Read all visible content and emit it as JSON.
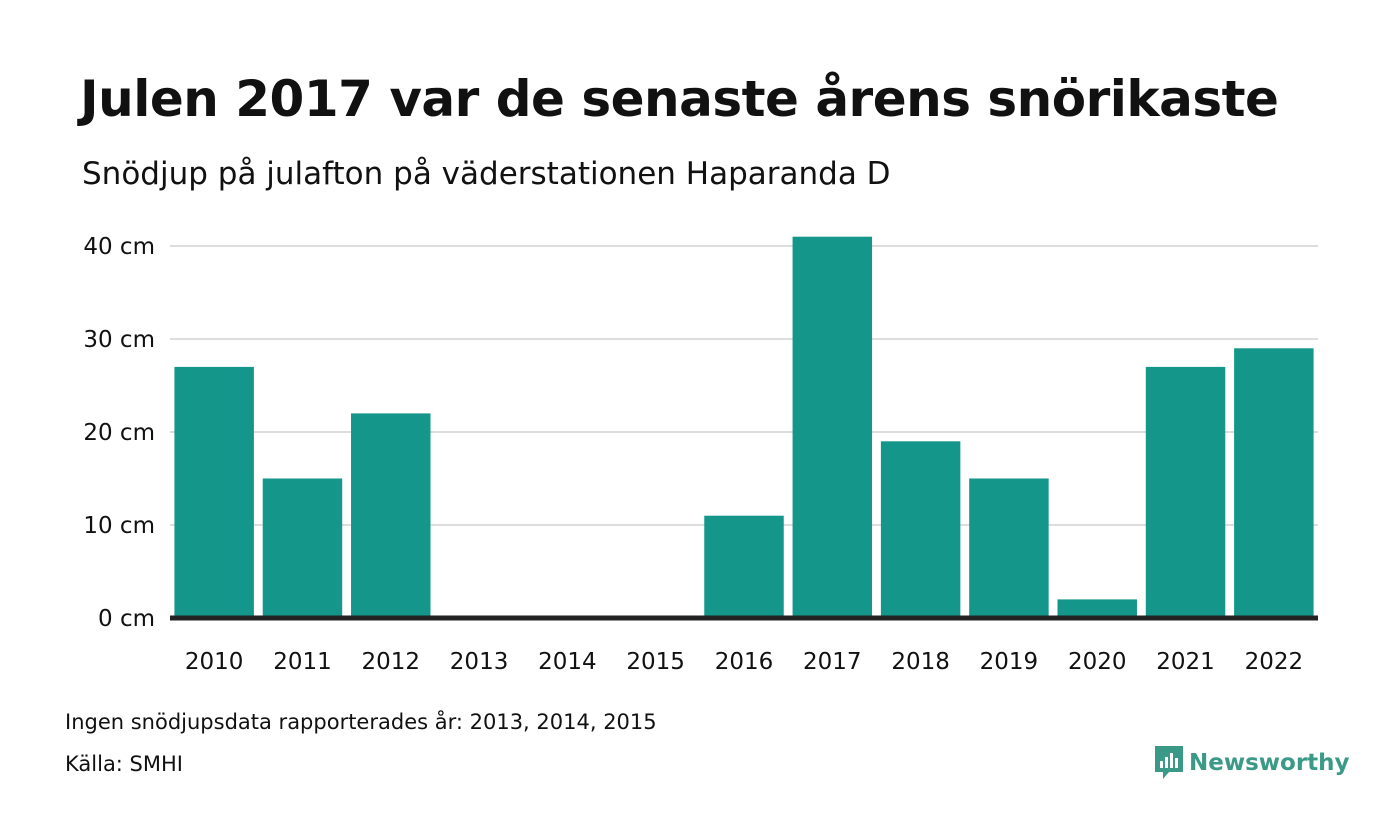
{
  "title": "Julen 2017 var de senaste årens snörikaste",
  "subtitle": "Snödjup på julafton på väderstationen Haparanda D",
  "note": "Ingen snödjupsdata rapporterades år: 2013, 2014, 2015",
  "source": "Källa: SMHI",
  "brand": {
    "name": "Newsworthy",
    "color": "#3a9a87"
  },
  "colors": {
    "bar": "#14968a",
    "grid": "#dddddd",
    "baseline": "#222222"
  },
  "chart_data": {
    "type": "bar",
    "title": "Julen 2017 var de senaste årens snörikaste",
    "subtitle": "Snödjup på julafton på väderstationen Haparanda D",
    "xlabel": "",
    "ylabel": "",
    "categories": [
      "2010",
      "2011",
      "2012",
      "2013",
      "2014",
      "2015",
      "2016",
      "2017",
      "2018",
      "2019",
      "2020",
      "2021",
      "2022"
    ],
    "values": [
      27,
      15,
      22,
      null,
      null,
      null,
      11,
      41,
      19,
      15,
      2,
      27,
      29
    ],
    "ylim": [
      0,
      40
    ],
    "yticks": [
      0,
      10,
      20,
      30,
      40
    ],
    "ytick_labels": [
      "0 cm",
      "10 cm",
      "20 cm",
      "30 cm",
      "40 cm"
    ],
    "grid": true,
    "legend": "none"
  }
}
